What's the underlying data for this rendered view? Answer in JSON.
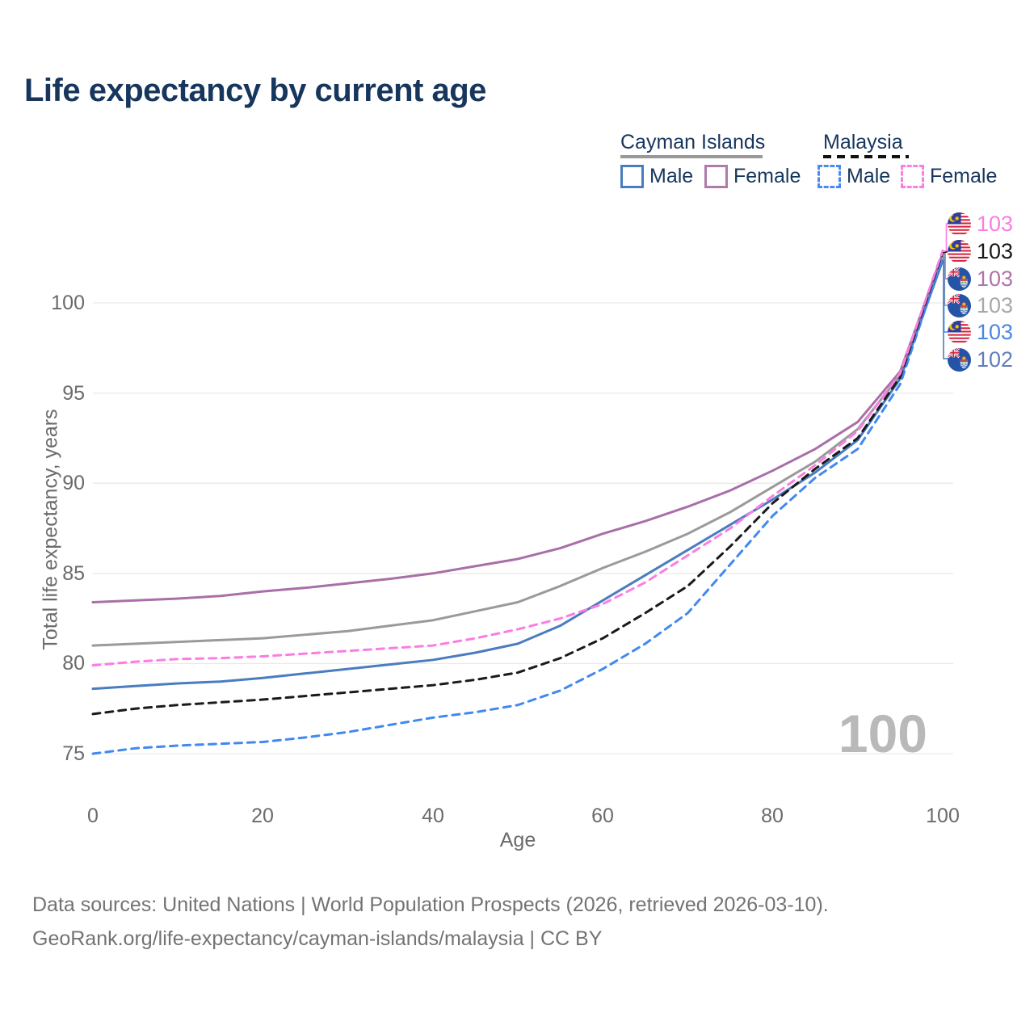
{
  "title": "Life expectancy by current age",
  "legend": {
    "groups": [
      {
        "country": "Cayman Islands",
        "line_style": "solid",
        "items": [
          {
            "label": "Male",
            "color": "#4a7dbf"
          },
          {
            "label": "Female",
            "color": "#b07aad"
          }
        ]
      },
      {
        "country": "Malaysia",
        "line_style": "dashed",
        "items": [
          {
            "label": "Male",
            "color": "#4a8bf0"
          },
          {
            "label": "Female",
            "color": "#fb7de2"
          }
        ]
      }
    ]
  },
  "axes": {
    "y_label": "Total life expectancy, years",
    "x_label": "Age",
    "y_ticks": [
      "100",
      "95",
      "90",
      "85",
      "80",
      "75"
    ],
    "x_ticks": [
      "0",
      "20",
      "40",
      "60",
      "80",
      "100"
    ]
  },
  "watermark": "100",
  "annotations": [
    {
      "value": "103",
      "flag": "malaysia",
      "color": "#fb7de2",
      "series": "Malaysia Female"
    },
    {
      "value": "103",
      "flag": "malaysia",
      "color": "#1a1a1a",
      "series": "Malaysia"
    },
    {
      "value": "103",
      "flag": "cayman-islands",
      "color": "#b173ad",
      "series": "Cayman Islands Female"
    },
    {
      "value": "103",
      "flag": "cayman-islands",
      "color": "#a8a8a8",
      "series": "Cayman Islands"
    },
    {
      "value": "103",
      "flag": "malaysia",
      "color": "#4b86e0",
      "series": "Malaysia Male"
    },
    {
      "value": "102",
      "flag": "cayman-islands",
      "color": "#5f7fb8",
      "series": "Cayman Islands Male"
    }
  ],
  "footer": {
    "line1": "Data sources: United Nations | World Population Prospects (2026, retrieved 2026-03-10).",
    "line2": "GeoRank.org/life-expectancy/cayman-islands/malaysia | CC BY"
  },
  "chart_data": {
    "type": "line",
    "title": "Life expectancy by current age",
    "xlabel": "Age",
    "ylabel": "Total life expectancy, years",
    "xlim": [
      0,
      100
    ],
    "y_tick_range": [
      75,
      100
    ],
    "grid": "horizontal",
    "legend_position": "top-right",
    "x": [
      0,
      5,
      10,
      15,
      20,
      25,
      30,
      35,
      40,
      45,
      50,
      55,
      60,
      65,
      70,
      75,
      80,
      85,
      90,
      95,
      100
    ],
    "series": [
      {
        "name": "Cayman Islands",
        "country": "Cayman Islands",
        "sex": "both",
        "line": "solid",
        "color": "#9a9a9a",
        "end_label": "103",
        "values": [
          81.0,
          81.1,
          81.2,
          81.3,
          81.4,
          81.6,
          81.8,
          82.1,
          82.4,
          82.9,
          83.4,
          84.3,
          85.3,
          86.2,
          87.2,
          88.4,
          89.8,
          91.2,
          93.0,
          96.0,
          102.65
        ]
      },
      {
        "name": "Cayman Islands Female",
        "country": "Cayman Islands",
        "sex": "female",
        "line": "solid",
        "color": "#a86fa8",
        "end_label": "103",
        "values": [
          83.4,
          83.5,
          83.6,
          83.75,
          84.0,
          84.2,
          84.45,
          84.7,
          85.0,
          85.4,
          85.8,
          86.4,
          87.2,
          87.9,
          88.7,
          89.6,
          90.7,
          91.9,
          93.4,
          96.2,
          102.75
        ]
      },
      {
        "name": "Cayman Islands Male",
        "country": "Cayman Islands",
        "sex": "male",
        "line": "solid",
        "color": "#4a7dbf",
        "end_label": "102",
        "values": [
          78.6,
          78.75,
          78.9,
          79.0,
          79.2,
          79.45,
          79.7,
          79.95,
          80.2,
          80.6,
          81.1,
          82.1,
          83.5,
          84.9,
          86.3,
          87.7,
          89.1,
          90.6,
          92.4,
          95.8,
          102.35
        ]
      },
      {
        "name": "Malaysia Male",
        "country": "Malaysia",
        "sex": "male",
        "line": "dashed",
        "color": "#4189f0",
        "end_label": "103",
        "values": [
          75.0,
          75.3,
          75.45,
          75.55,
          75.65,
          75.9,
          76.2,
          76.6,
          77.0,
          77.3,
          77.7,
          78.5,
          79.7,
          81.1,
          82.8,
          85.5,
          88.2,
          90.3,
          91.9,
          95.5,
          102.55
        ]
      },
      {
        "name": "Malaysia",
        "country": "Malaysia",
        "sex": "both",
        "line": "dashed",
        "color": "#1a1a1a",
        "end_label": "103",
        "values": [
          77.2,
          77.5,
          77.7,
          77.85,
          78.0,
          78.2,
          78.4,
          78.6,
          78.8,
          79.1,
          79.5,
          80.3,
          81.4,
          82.8,
          84.3,
          86.5,
          88.9,
          90.8,
          92.5,
          95.9,
          102.8
        ]
      },
      {
        "name": "Malaysia Female",
        "country": "Malaysia",
        "sex": "female",
        "line": "dashed",
        "color": "#fb7de2",
        "end_label": "103",
        "values": [
          79.9,
          80.1,
          80.25,
          80.3,
          80.4,
          80.55,
          80.7,
          80.85,
          81.0,
          81.4,
          81.9,
          82.5,
          83.3,
          84.5,
          86.0,
          87.5,
          89.3,
          91.0,
          92.9,
          96.1,
          102.9
        ]
      }
    ]
  }
}
